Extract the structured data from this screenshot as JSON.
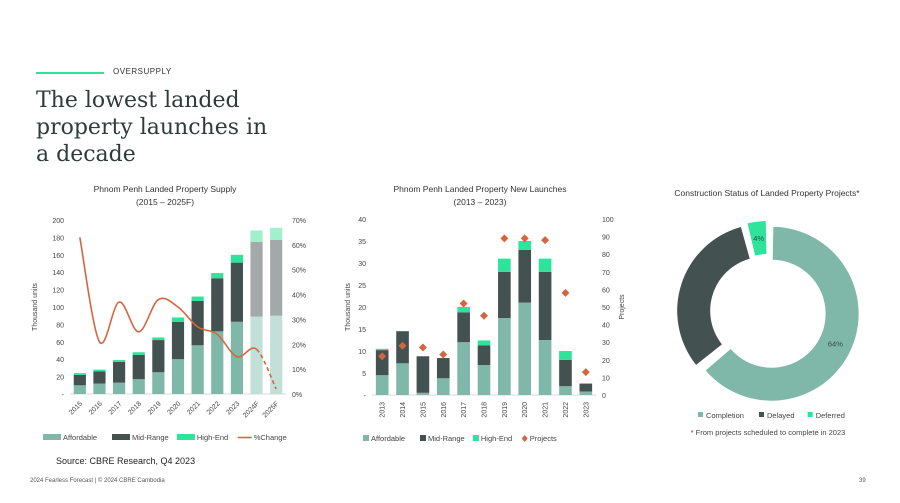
{
  "header": {
    "eyebrow": "OVERSUPPLY",
    "title": "The lowest landed property launches in a decade"
  },
  "source": "Source: CBRE Research, Q4 2023",
  "footer": {
    "text": "2024 Fearless Forecast | © 2024 CBRE Cambodia",
    "page": "39"
  },
  "colors": {
    "affordable": "#7fb7a8",
    "mid_range": "#435150",
    "high_end": "#2ee39a",
    "change": "#d4663f",
    "affordable_forecast": "#c2e0d7",
    "mid_range_forecast": "#a3a8a8",
    "high_end_forecast": "#a2efcc"
  },
  "chart_data": [
    {
      "type": "bar",
      "stacked": true,
      "title": "Phnom Penh Landed Property Supply",
      "subtitle": "(2015 – 2025F)",
      "ylabel": "Thousand units",
      "ylim": [
        0,
        200
      ],
      "yticks": [
        "-",
        "20",
        "40",
        "60",
        "80",
        "100",
        "120",
        "140",
        "160",
        "180",
        "200"
      ],
      "y2lim": [
        0,
        70
      ],
      "y2ticks": [
        "0%",
        "10%",
        "20%",
        "30%",
        "40%",
        "50%",
        "60%",
        "70%"
      ],
      "categories": [
        "2015",
        "2016",
        "2017",
        "2018",
        "2019",
        "2020",
        "2021",
        "2022",
        "2023",
        "2024F",
        "2025F"
      ],
      "series": [
        {
          "name": "Affordable",
          "values": [
            10,
            12,
            13,
            17,
            25,
            40,
            56,
            72,
            83,
            89,
            90
          ]
        },
        {
          "name": "Mid-Range",
          "values": [
            12,
            14,
            24,
            28,
            37,
            43,
            51,
            61,
            68,
            86,
            87
          ]
        },
        {
          "name": "High-End",
          "values": [
            2,
            2,
            2,
            3,
            3,
            5,
            5,
            6,
            9,
            13,
            14
          ]
        },
        {
          "name": "%Change",
          "type": "line",
          "axis": "right",
          "unit": "%",
          "values": [
            63,
            21,
            37,
            25,
            38,
            35,
            27,
            24,
            15,
            18,
            2
          ]
        }
      ],
      "legend": "bottom"
    },
    {
      "type": "bar",
      "stacked": true,
      "title": "Phnom Penh Landed Property New Launches",
      "subtitle": "(2013 – 2023)",
      "ylabel": "Thousand units",
      "y2label": "Projects",
      "ylim": [
        0,
        40
      ],
      "yticks": [
        "-",
        "5",
        "10",
        "15",
        "20",
        "25",
        "30",
        "35",
        "40"
      ],
      "y2lim": [
        0,
        100
      ],
      "y2ticks": [
        "0",
        "10",
        "20",
        "30",
        "40",
        "50",
        "60",
        "70",
        "80",
        "90",
        "100"
      ],
      "categories": [
        "2013",
        "2014",
        "2015",
        "2016",
        "2017",
        "2018",
        "2019",
        "2020",
        "2021",
        "2022",
        "2023"
      ],
      "series": [
        {
          "name": "Affordable",
          "values": [
            4.5,
            7.2,
            0.5,
            3.8,
            12,
            6.8,
            17.5,
            21,
            12.5,
            2,
            0.8
          ]
        },
        {
          "name": "Mid-Range",
          "values": [
            5.7,
            7.3,
            8.3,
            4.6,
            6.8,
            4.5,
            10.5,
            12,
            15.5,
            6,
            1.7
          ]
        },
        {
          "name": "High-End",
          "values": [
            0.3,
            0,
            0,
            0,
            1.2,
            1.1,
            3,
            2,
            3,
            2,
            0.2
          ]
        },
        {
          "name": "Projects",
          "type": "scatter",
          "axis": "right",
          "values": [
            22,
            28,
            27,
            23,
            52,
            45,
            89,
            89,
            88,
            58,
            13
          ]
        }
      ],
      "legend": "bottom"
    },
    {
      "type": "pie",
      "donut": true,
      "title": "Construction Status of Landed Property Projects*",
      "categories": [
        "Completion",
        "Delayed",
        "Deferred"
      ],
      "values": [
        64,
        32,
        4
      ],
      "labels": [
        "64%",
        "",
        "4%"
      ],
      "note": "* From projects scheduled to complete in 2023",
      "legend": "bottom"
    }
  ]
}
